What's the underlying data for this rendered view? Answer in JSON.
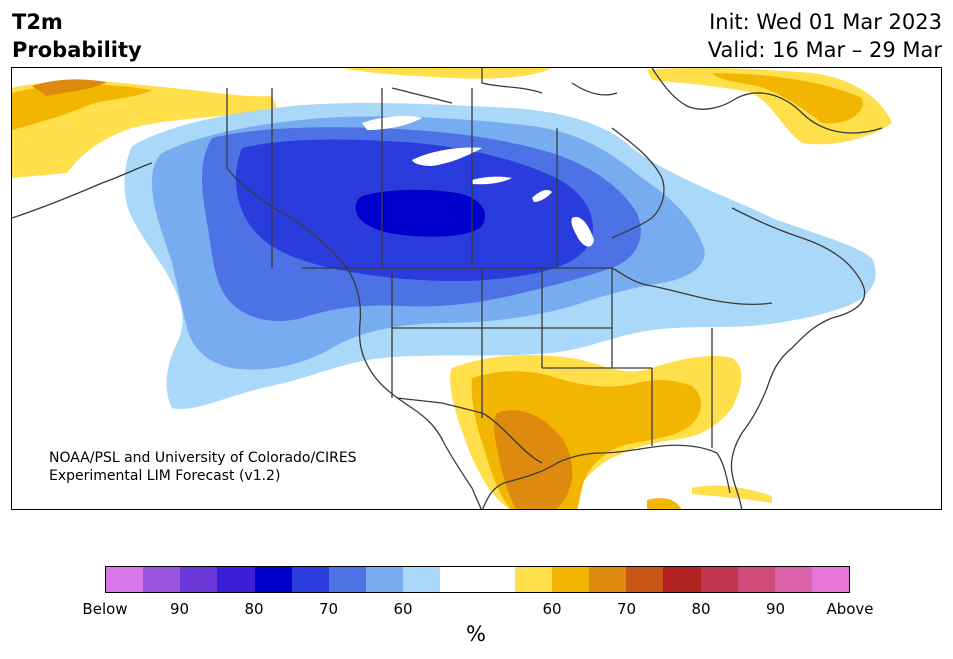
{
  "header": {
    "title_line1": "T2m",
    "title_line2": "Probability",
    "init": "Init: Wed 01 Mar 2023",
    "valid": "Valid: 16 Mar – 29 Mar"
  },
  "map": {
    "credit_line1": "NOAA/PSL and University of Colorado/CIRES",
    "credit_line2": "Experimental LIM Forecast (v1.2)"
  },
  "colorbar": {
    "unit": "%",
    "colors": [
      "#d875e8",
      "#9a55e0",
      "#6a38d8",
      "#3a1ed6",
      "#0000cc",
      "#2a3cdc",
      "#4d72e6",
      "#78acf0",
      "#aad8f8",
      "#ffffff",
      "#ffffff",
      "#ffdf4a",
      "#f2b600",
      "#de8a0e",
      "#c85614",
      "#b22222",
      "#c0344e",
      "#d04c7a",
      "#dc62ac",
      "#e875d8"
    ],
    "tick_labels": [
      "Below",
      "90",
      "80",
      "70",
      "60",
      "60",
      "70",
      "80",
      "90",
      "Above"
    ]
  },
  "palette": {
    "coast": "#3a3a3a",
    "land": "#ffffff"
  }
}
